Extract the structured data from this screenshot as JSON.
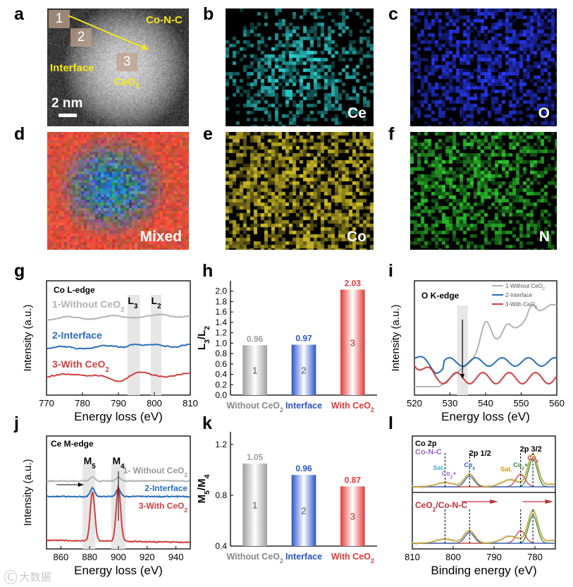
{
  "panels": {
    "a": {
      "letter": "a",
      "regions": [
        "1",
        "2",
        "3"
      ],
      "label_conc": "Co-N-C",
      "label_interface": "Interface",
      "label_ceo2": "CeO",
      "label_ceo2_sub": "2",
      "scalebar": "2 nm"
    },
    "b": {
      "letter": "b",
      "element": "Ce",
      "color": "#2fd6d6"
    },
    "c": {
      "letter": "c",
      "element": "O",
      "color": "#2a3cff"
    },
    "d": {
      "letter": "d",
      "element": "Mixed"
    },
    "e": {
      "letter": "e",
      "element": "Co",
      "color": "#d8c62a"
    },
    "f": {
      "letter": "f",
      "element": "N",
      "color": "#2fd12f"
    },
    "g": {
      "letter": "g"
    },
    "h": {
      "letter": "h"
    },
    "i": {
      "letter": "i"
    },
    "j": {
      "letter": "j"
    },
    "k": {
      "letter": "k"
    },
    "l": {
      "letter": "l"
    }
  },
  "chart_data": [
    {
      "id": "g",
      "type": "line",
      "title": "Co L-edge",
      "xlabel": "Energy loss (eV)",
      "ylabel": "Intensity (a.u.)",
      "xlim": [
        770,
        810
      ],
      "xticks": [
        "770",
        "780",
        "790",
        "800",
        "810"
      ],
      "edge_labels": [
        "L3",
        "L2"
      ],
      "series": [
        {
          "name": "1-Without CeO2",
          "color": "#b3b3b3"
        },
        {
          "name": "2-Interface",
          "color": "#2a6ebb"
        },
        {
          "name": "3-With CeO2",
          "color": "#d0403f"
        }
      ]
    },
    {
      "id": "h",
      "type": "bar",
      "ylabel": "L3/L2",
      "ylim": [
        0.0,
        2.2
      ],
      "yticks": [
        "0.0",
        "0.2",
        "0.4",
        "0.6",
        "0.8",
        "1.0",
        "1.2",
        "1.4",
        "1.6",
        "1.8",
        "2.0"
      ],
      "categories": [
        "Without CeO2",
        "Interface",
        "With CeO2"
      ],
      "bar_index": [
        "1",
        "2",
        "3"
      ],
      "values": [
        0.96,
        0.97,
        2.03
      ],
      "value_labels": [
        "0.96",
        "0.97",
        "2.03"
      ],
      "colors": [
        "#9e9e9e",
        "#2a55c8",
        "#e23a3a"
      ]
    },
    {
      "id": "i",
      "type": "line",
      "title": "O K-edge",
      "xlabel": "Energy loss (eV)",
      "ylabel": "Intensity (a.u.)",
      "xlim": [
        520,
        560
      ],
      "xticks": [
        "520",
        "530",
        "540",
        "550",
        "560"
      ],
      "series": [
        {
          "name": "1-Without CeO2",
          "color": "#b3b3b3"
        },
        {
          "name": "2-Interface",
          "color": "#2a6ebb"
        },
        {
          "name": "3-With CeO2",
          "color": "#d0403f"
        }
      ],
      "legend": "top-right"
    },
    {
      "id": "j",
      "type": "line",
      "title": "Ce M-edge",
      "xlabel": "Energy loss (eV)",
      "ylabel": "Intensity (a.u.)",
      "xlim": [
        850,
        950
      ],
      "xticks": [
        "860",
        "880",
        "900",
        "920",
        "940"
      ],
      "edge_labels": [
        "M5",
        "M4"
      ],
      "series": [
        {
          "name": "1- Without CeO2",
          "color": "#b3b3b3"
        },
        {
          "name": "2-Interface",
          "color": "#2a6ebb"
        },
        {
          "name": "3-With CeO2",
          "color": "#d0403f"
        }
      ]
    },
    {
      "id": "k",
      "type": "bar",
      "ylabel": "M5/M4",
      "ylim": [
        0.4,
        1.3
      ],
      "yticks": [
        "0.4",
        "0.8",
        "1.2"
      ],
      "categories": [
        "Without CeO2",
        "Interface",
        "With CeO2"
      ],
      "bar_index": [
        "1",
        "2",
        "3"
      ],
      "values": [
        1.05,
        0.96,
        0.87
      ],
      "value_labels": [
        "1.05",
        "0.96",
        "0.87"
      ],
      "colors": [
        "#9e9e9e",
        "#2a55c8",
        "#e23a3a"
      ]
    },
    {
      "id": "l",
      "type": "line",
      "xlabel": "Binding energy (eV)",
      "xlim": [
        810,
        775
      ],
      "xticks": [
        "810",
        "800",
        "790",
        "780"
      ],
      "top_labels": [
        "Co 2p",
        "Co-N-C",
        "2p 1/2",
        "2p 3/2",
        "Sat.",
        "Co2+",
        "Co0",
        "Sat.",
        "Co2+",
        "Co0"
      ],
      "bottom_label": "CeO2/Co-N-C"
    }
  ],
  "watermark": "大数据"
}
